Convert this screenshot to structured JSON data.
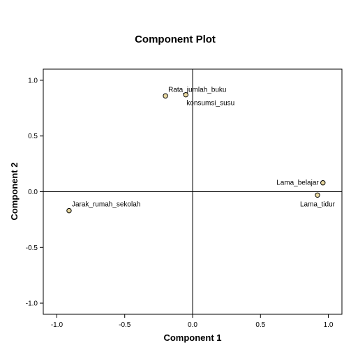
{
  "chart_data": {
    "type": "scatter",
    "title": "Component Plot",
    "xlabel": "Component 1",
    "ylabel": "Component 2",
    "xlim": [
      -1.1,
      1.1
    ],
    "ylim": [
      -1.1,
      1.1
    ],
    "xticks": [
      {
        "value": -1.0,
        "label": "-1.0"
      },
      {
        "value": -0.5,
        "label": "-0.5"
      },
      {
        "value": 0.0,
        "label": "0.0"
      },
      {
        "value": 0.5,
        "label": "0.5"
      },
      {
        "value": 1.0,
        "label": "1.0"
      }
    ],
    "yticks": [
      {
        "value": 1.0,
        "label": "1.0"
      },
      {
        "value": 0.5,
        "label": "0.5"
      },
      {
        "value": 0.0,
        "label": "0.0"
      },
      {
        "value": -0.5,
        "label": "-0.5"
      },
      {
        "value": -1.0,
        "label": "-1.0"
      }
    ],
    "grid": false,
    "reference_lines": "x=0 and y=0",
    "point_color": "#e8d8a0",
    "point_stroke": "#000000",
    "points": [
      {
        "label": "Rata_jumlah_buku",
        "x": -0.2,
        "y": 0.86,
        "label_pos": "above-right"
      },
      {
        "label": "konsumsi_susu",
        "x": -0.05,
        "y": 0.87,
        "label_pos": "below-right"
      },
      {
        "label": "Lama_belajar",
        "x": 0.96,
        "y": 0.08,
        "label_pos": "left"
      },
      {
        "label": "Lama_tidur",
        "x": 0.92,
        "y": -0.03,
        "label_pos": "below"
      },
      {
        "label": "Jarak_rumah_sekolah",
        "x": -0.91,
        "y": -0.17,
        "label_pos": "above-right"
      }
    ]
  }
}
